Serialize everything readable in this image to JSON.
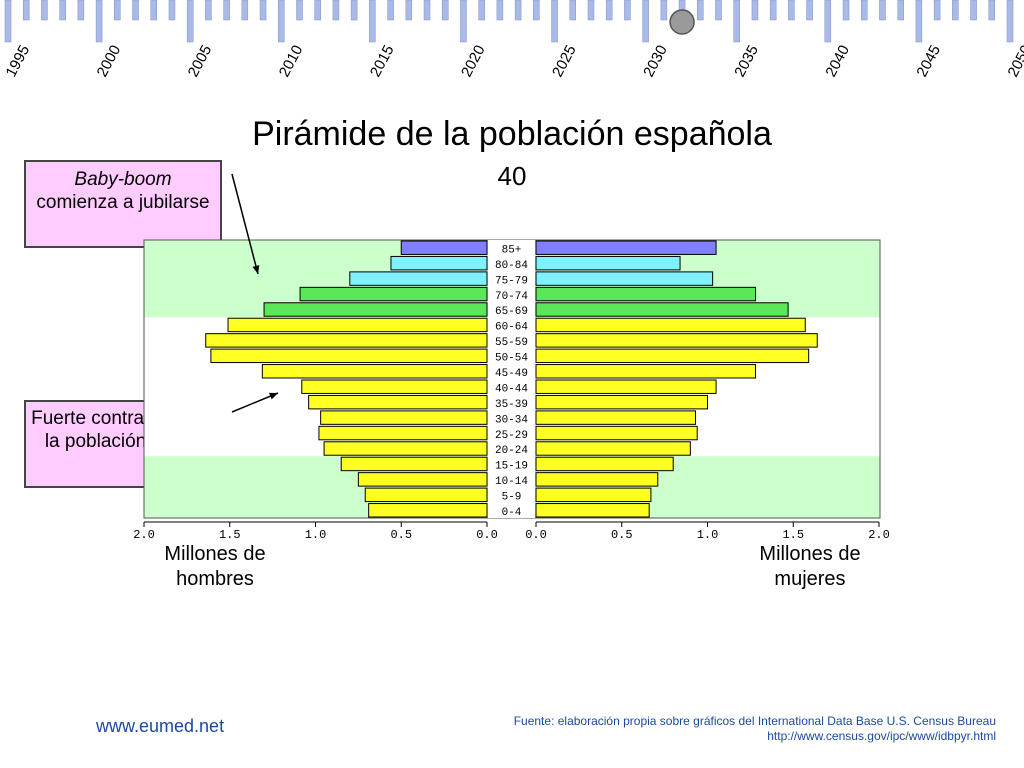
{
  "timeline": {
    "years": [
      "1995",
      "2000",
      "2005",
      "2010",
      "2015",
      "2020",
      "2025",
      "2030",
      "2035",
      "2040",
      "2045",
      "2050"
    ],
    "start_year": 1995,
    "end_year": 2050,
    "current_year": 2035,
    "bar_color": "#a9b9e8",
    "slider_color": "#9a9a9a"
  },
  "title": "Pirámide de la población española",
  "subtitle_year": "40",
  "annotations": [
    {
      "italic": "Baby-boom",
      "text": "comienza a jubilarse"
    },
    {
      "text": "Fuerte contracción de la población activa"
    }
  ],
  "axis_captions": {
    "left": "Millones de hombres",
    "right": "Millones de mujeres"
  },
  "footer": {
    "site": "www.eumed.net",
    "source_line1": "Fuente: elaboración propia sobre gráficos del International Data Base U.S. Census Bureau",
    "source_line2": "http://www.census.gov/ipc/www/idbpyr.html"
  },
  "chart_data": {
    "type": "bar",
    "orientation": "horizontal-pyramid",
    "title": "Pirámide de la población española",
    "subtitle": "40",
    "categories": [
      "85+",
      "80-84",
      "75-79",
      "70-74",
      "65-69",
      "60-64",
      "55-59",
      "50-54",
      "45-49",
      "40-44",
      "35-39",
      "30-34",
      "25-29",
      "20-24",
      "15-19",
      "10-14",
      "5-9",
      "0-4"
    ],
    "series": [
      {
        "name": "Millones de hombres",
        "values": [
          0.5,
          0.56,
          0.8,
          1.09,
          1.3,
          1.51,
          1.64,
          1.61,
          1.31,
          1.08,
          1.04,
          0.97,
          0.98,
          0.95,
          0.85,
          0.75,
          0.71,
          0.69
        ]
      },
      {
        "name": "Millones de mujeres",
        "values": [
          1.05,
          0.84,
          1.03,
          1.28,
          1.47,
          1.57,
          1.64,
          1.59,
          1.28,
          1.05,
          1.0,
          0.93,
          0.94,
          0.9,
          0.8,
          0.71,
          0.67,
          0.66
        ]
      }
    ],
    "group_colors": [
      "#8080ff",
      "#80f0ff",
      "#80f0ff",
      "#5ae85a",
      "#5ae85a",
      "#ffff22",
      "#ffff22",
      "#ffff22",
      "#ffff22",
      "#ffff22",
      "#ffff22",
      "#ffff22",
      "#ffff22",
      "#ffff22",
      "#ffff22",
      "#ffff22",
      "#ffff22",
      "#ffff22"
    ],
    "highlight_bands": [
      {
        "from": "85+",
        "to": "65-69",
        "color": "#ccffcc"
      },
      {
        "from": "15-19",
        "to": "0-4",
        "color": "#ccffcc"
      }
    ],
    "xlim": [
      0,
      2.0
    ],
    "ticks": [
      "2.0",
      "1.5",
      "1.0",
      "0.5",
      "0.0"
    ],
    "ticks_right": [
      "0.0",
      "0.5",
      "1.0",
      "1.5",
      "2.0"
    ]
  }
}
